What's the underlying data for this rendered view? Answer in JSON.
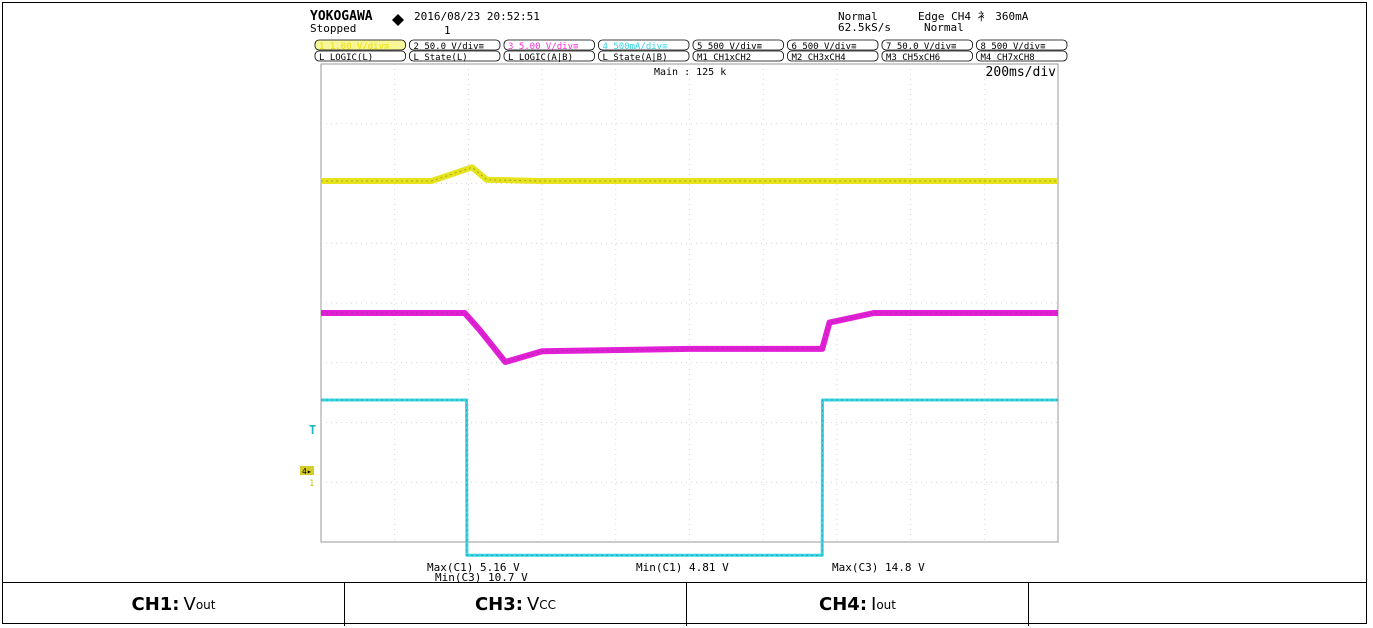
{
  "scope": {
    "brand": "YOKOGAWA",
    "brand_mark": "diamond-icon",
    "datetime": "2016/08/23 20:52:51",
    "status": "Stopped",
    "acq_count": "1",
    "trigger_mode": "Normal",
    "sample_rate": "62.5kS/s",
    "acq_mode": "Normal",
    "trigger": "Edge CH4 ⻂ 360mA",
    "main_points": "Main : 125 k",
    "timebase": "200ms/div",
    "channels_row1": [
      {
        "label": "1 1.00 V/div≡",
        "color": "#e8e000",
        "bg": "#f7f79a"
      },
      {
        "label": "2 50.0 V/div≡",
        "color": "#000000",
        "bg": "#ffffff"
      },
      {
        "label": "3 5.00 V/div≡",
        "color": "#ff2bd6",
        "bg": "#ffffff"
      },
      {
        "label": "4 500mA/div≡",
        "color": "#2fd6e6",
        "bg": "#ffffff"
      },
      {
        "label": "5 500 V/div≡",
        "color": "#000000",
        "bg": "#ffffff"
      },
      {
        "label": "6 500 V/div≡",
        "color": "#000000",
        "bg": "#ffffff"
      },
      {
        "label": "7 50.0 V/div≡",
        "color": "#000000",
        "bg": "#ffffff"
      },
      {
        "label": "8 500 V/div≡",
        "color": "#000000",
        "bg": "#ffffff"
      }
    ],
    "channels_row2": [
      "L LOGIC(L)",
      "L State(L)",
      "L LOGIC(A|B)",
      "L State(A|B)",
      "M1 CH1xCH2",
      "M2 CH3xCH4",
      "M3 CH5xCH6",
      "M4 CH7xCH8"
    ],
    "measurements": {
      "max_c1": "Max(C1)  5.16 V",
      "min_c3": "Min(C3)  10.7 V",
      "min_c1": "Min(C1)  4.81 V",
      "max_c3": "Max(C3)  14.8 V"
    },
    "markers": {
      "trigger": "T",
      "ch_markers": "4▸",
      "ch1_marker": "1"
    }
  },
  "chart_data": {
    "type": "line",
    "title": "",
    "xlabel": "",
    "ylabel": "",
    "grid": true,
    "x_divisions": 10,
    "y_divisions": 8,
    "xlim": [
      0,
      2.0
    ],
    "series": [
      {
        "name": "CH1",
        "color": "#e6e21c",
        "x": [
          0,
          0.3,
          0.41,
          0.45,
          0.6,
          1.0,
          2.0
        ],
        "y": [
          4.85,
          4.85,
          5.08,
          4.87,
          4.85,
          4.85,
          4.85
        ]
      },
      {
        "name": "CH3",
        "color": "#e21fd6",
        "x": [
          0,
          0.39,
          0.43,
          0.5,
          0.6,
          1.0,
          1.36,
          1.38,
          1.5,
          2.0
        ],
        "y": [
          14.8,
          14.8,
          13.4,
          10.7,
          11.6,
          11.8,
          11.8,
          14.0,
          14.8,
          14.8
        ]
      },
      {
        "name": "CH4",
        "color": "#33d6e4",
        "x": [
          0,
          0.395,
          0.396,
          1.36,
          1.361,
          2.0
        ],
        "y": [
          1.4,
          1.4,
          0.1,
          0.1,
          1.4,
          1.4
        ]
      }
    ]
  },
  "table": [
    {
      "bold": "CH1:",
      "main": "V",
      "sub": "out"
    },
    {
      "bold": "CH3:",
      "main": "V",
      "sub": "CC"
    },
    {
      "bold": "CH4:",
      "main": "I",
      "sub": "out"
    },
    {
      "bold": "",
      "main": "",
      "sub": ""
    }
  ]
}
